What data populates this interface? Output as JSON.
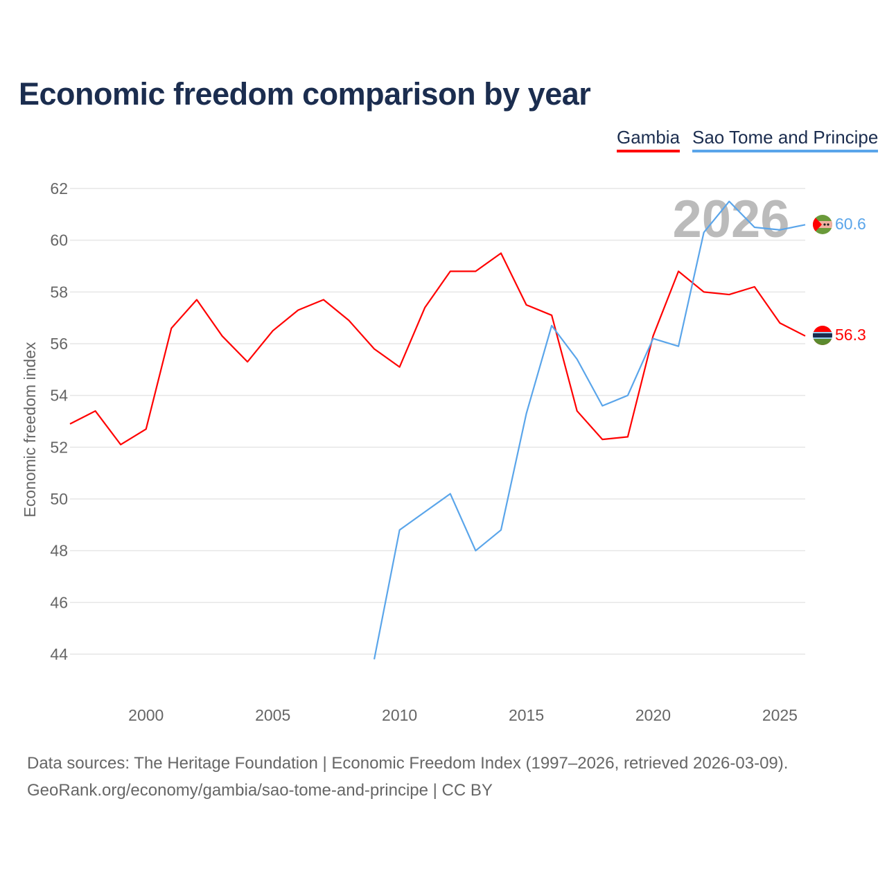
{
  "chart_data": {
    "type": "line",
    "title": "Economic freedom comparison by year",
    "xlabel": "",
    "ylabel": "Economic freedom index",
    "xlim": [
      1997,
      2026
    ],
    "ylim": [
      44,
      62
    ],
    "y_ticks": [
      44,
      46,
      48,
      50,
      52,
      54,
      56,
      58,
      60,
      62
    ],
    "x_ticks": [
      2000,
      2005,
      2010,
      2015,
      2020,
      2025
    ],
    "grid": true,
    "legend_position": "top-right",
    "watermark_year": "2026",
    "series": [
      {
        "name": "Gambia",
        "color": "#ff0000",
        "end_label": "56.3",
        "x": [
          1997,
          1998,
          1999,
          2000,
          2001,
          2002,
          2003,
          2004,
          2005,
          2006,
          2007,
          2008,
          2009,
          2010,
          2011,
          2012,
          2013,
          2014,
          2015,
          2016,
          2017,
          2018,
          2019,
          2020,
          2021,
          2022,
          2023,
          2024,
          2025,
          2026
        ],
        "values": [
          52.9,
          53.4,
          52.1,
          52.7,
          56.6,
          57.7,
          56.3,
          55.3,
          56.5,
          57.3,
          57.7,
          56.9,
          55.8,
          55.1,
          57.4,
          58.8,
          58.8,
          59.5,
          57.5,
          57.1,
          53.4,
          52.3,
          52.4,
          56.3,
          58.8,
          58.0,
          57.9,
          58.2,
          56.8,
          56.3
        ]
      },
      {
        "name": "Sao Tome and Principe",
        "color": "#5aa5ea",
        "end_label": "60.6",
        "x": [
          2009,
          2010,
          2011,
          2012,
          2013,
          2014,
          2015,
          2016,
          2017,
          2018,
          2019,
          2020,
          2021,
          2022,
          2023,
          2024,
          2025,
          2026
        ],
        "values": [
          43.8,
          48.8,
          49.5,
          50.2,
          48.0,
          48.8,
          53.3,
          56.7,
          55.4,
          53.6,
          54.0,
          56.2,
          55.9,
          60.3,
          61.5,
          60.5,
          60.4,
          60.6
        ]
      }
    ]
  },
  "footer": {
    "line1": "Data sources: The Heritage Foundation | Economic Freedom Index (1997–2026, retrieved 2026-03-09).",
    "line2": "GeoRank.org/economy/gambia/sao-tome-and-principe | CC BY"
  }
}
